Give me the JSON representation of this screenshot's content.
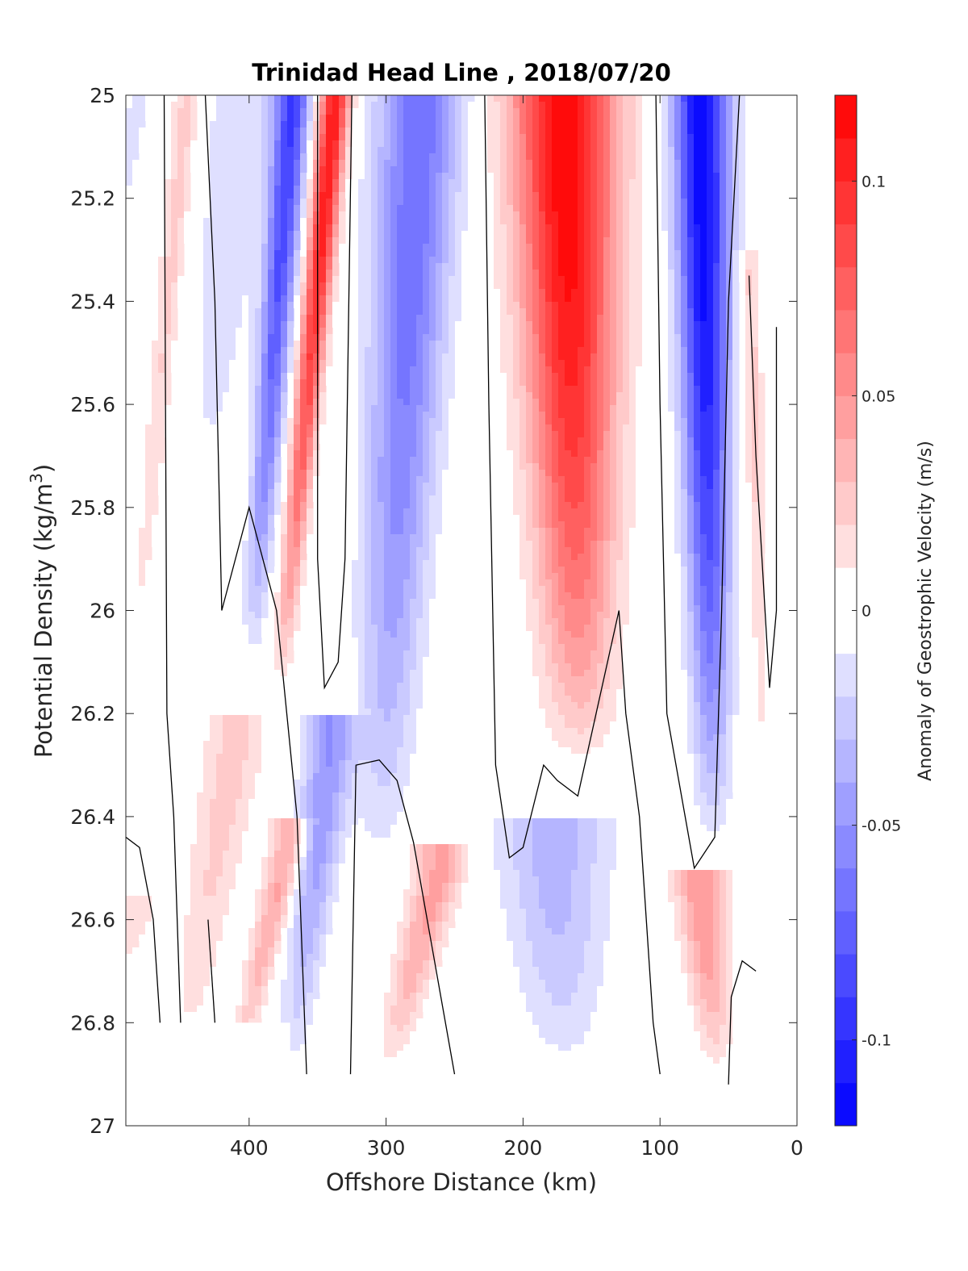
{
  "chart_data": {
    "type": "heatmap",
    "title": "Trinidad Head Line , 2018/07/20",
    "xlabel": "Offshore Distance (km)",
    "ylabel_main": "Potential Density (kg/m",
    "ylabel_sup": "3",
    "ylabel_end": ")",
    "colorbar_label": "Anomaly of Geostrophic Velocity (m/s)",
    "xlim": [
      490,
      0
    ],
    "ylim": [
      25,
      27
    ],
    "x_reversed": true,
    "y_reversed": true,
    "x_ticks": [
      {
        "value": 400,
        "label": "400"
      },
      {
        "value": 300,
        "label": "300"
      },
      {
        "value": 200,
        "label": "200"
      },
      {
        "value": 100,
        "label": "100"
      },
      {
        "value": 0,
        "label": "0"
      }
    ],
    "y_ticks": [
      {
        "value": 25,
        "label": "25"
      },
      {
        "value": 25.2,
        "label": "25.2"
      },
      {
        "value": 25.4,
        "label": "25.4"
      },
      {
        "value": 25.6,
        "label": "25.6"
      },
      {
        "value": 25.8,
        "label": "25.8"
      },
      {
        "value": 26,
        "label": "26"
      },
      {
        "value": 26.2,
        "label": "26.2"
      },
      {
        "value": 26.4,
        "label": "26.4"
      },
      {
        "value": 26.6,
        "label": "26.6"
      },
      {
        "value": 26.8,
        "label": "26.8"
      },
      {
        "value": 27,
        "label": "27"
      }
    ],
    "colorbar": {
      "range": [
        -0.12,
        0.12
      ],
      "levels": 24,
      "color_min": "#0000ff",
      "color_zero": "#ffffff",
      "color_max": "#ff0000",
      "ticks": [
        {
          "value": 0.1,
          "label": "0.1"
        },
        {
          "value": 0.05,
          "label": "0.05"
        },
        {
          "value": 0,
          "label": "0"
        },
        {
          "value": -0.05,
          "label": "-0.05"
        },
        {
          "value": -0.1,
          "label": "-0.1"
        }
      ]
    },
    "velocity_cores": [
      {
        "x": 480,
        "y_top": 25.0,
        "y_bottom": 25.45,
        "peak": -0.015,
        "width": 10
      },
      {
        "x": 445,
        "y_top": 25.0,
        "y_bottom": 26.15,
        "peak": 0.025,
        "width": 10
      },
      {
        "x": 405,
        "y_top": 25.0,
        "y_bottom": 25.85,
        "peak": -0.02,
        "width": 25
      },
      {
        "x": 368,
        "y_top": 25.0,
        "y_bottom": 26.1,
        "peak": -0.09,
        "width": 13
      },
      {
        "x": 337,
        "y_top": 25.0,
        "y_bottom": 26.15,
        "peak": 0.11,
        "width": 11
      },
      {
        "x": 275,
        "y_top": 25.0,
        "y_bottom": 26.5,
        "peak": -0.07,
        "width": 30
      },
      {
        "x": 170,
        "y_top": 25.0,
        "y_bottom": 26.3,
        "peak": 0.12,
        "width": 38
      },
      {
        "x": 70,
        "y_top": 25.0,
        "y_bottom": 26.45,
        "peak": -0.12,
        "width": 20
      },
      {
        "x": 35,
        "y_top": 25.35,
        "y_bottom": 26.4,
        "peak": 0.025,
        "width": 8
      },
      {
        "x": 340,
        "y_top": 26.25,
        "y_bottom": 26.9,
        "peak": -0.05,
        "width": 18
      },
      {
        "x": 178,
        "y_top": 26.45,
        "y_bottom": 26.9,
        "peak": -0.035,
        "width": 40
      },
      {
        "x": 70,
        "y_top": 26.55,
        "y_bottom": 26.9,
        "peak": 0.05,
        "width": 18
      },
      {
        "x": 260,
        "y_top": 26.5,
        "y_bottom": 26.9,
        "peak": 0.045,
        "width": 18
      },
      {
        "x": 370,
        "y_top": 26.45,
        "y_bottom": 26.9,
        "peak": 0.045,
        "width": 13
      },
      {
        "x": 410,
        "y_top": 26.25,
        "y_bottom": 26.9,
        "peak": 0.025,
        "width": 22
      },
      {
        "x": 480,
        "y_top": 26.6,
        "y_bottom": 26.8,
        "peak": 0.02,
        "width": 10
      }
    ],
    "zero_contours": [
      [
        [
          462,
          25.0
        ],
        [
          460,
          26.2
        ],
        [
          455,
          26.4
        ],
        [
          450,
          26.8
        ]
      ],
      [
        [
          432,
          25.0
        ],
        [
          425,
          25.4
        ],
        [
          420,
          26.0
        ],
        [
          400,
          25.8
        ],
        [
          380,
          26.0
        ],
        [
          365,
          26.4
        ],
        [
          358,
          26.9
        ]
      ],
      [
        [
          350,
          25.0
        ],
        [
          350,
          25.9
        ],
        [
          345,
          26.15
        ],
        [
          335,
          26.1
        ],
        [
          330,
          25.9
        ],
        [
          325,
          25.0
        ]
      ],
      [
        [
          490,
          26.44
        ],
        [
          480,
          26.46
        ],
        [
          470,
          26.6
        ],
        [
          465,
          26.8
        ]
      ],
      [
        [
          430,
          26.6
        ],
        [
          425,
          26.8
        ]
      ],
      [
        [
          326,
          26.9
        ],
        [
          322,
          26.3
        ],
        [
          305,
          26.29
        ],
        [
          292,
          26.33
        ],
        [
          280,
          26.45
        ],
        [
          250,
          26.9
        ]
      ],
      [
        [
          228,
          25.0
        ],
        [
          225,
          25.6
        ],
        [
          220,
          26.3
        ],
        [
          210,
          26.48
        ],
        [
          200,
          26.46
        ],
        [
          185,
          26.3
        ],
        [
          175,
          26.33
        ],
        [
          160,
          26.36
        ],
        [
          130,
          26.0
        ],
        [
          125,
          26.2
        ],
        [
          115,
          26.4
        ],
        [
          105,
          26.8
        ],
        [
          100,
          26.9
        ]
      ],
      [
        [
          103,
          25.0
        ],
        [
          100,
          25.6
        ],
        [
          95,
          26.2
        ],
        [
          75,
          26.5
        ],
        [
          60,
          26.44
        ],
        [
          55,
          26.0
        ],
        [
          50,
          25.4
        ],
        [
          42,
          25.0
        ]
      ],
      [
        [
          35,
          25.35
        ],
        [
          30,
          25.7
        ],
        [
          20,
          26.15
        ],
        [
          15,
          26.0
        ],
        [
          15,
          25.45
        ]
      ],
      [
        [
          50,
          26.92
        ],
        [
          48,
          26.75
        ],
        [
          40,
          26.68
        ],
        [
          30,
          26.7
        ]
      ]
    ],
    "nodata_regions": [
      {
        "x_from": 490,
        "x_to": 370,
        "y_from": 26.8,
        "y_to": 27.0
      },
      {
        "x_from": 490,
        "x_to": 0,
        "y_from": 26.9,
        "y_to": 27.0
      },
      {
        "x_from": 22,
        "x_to": 0,
        "y_from": 25.0,
        "y_to": 27.0
      }
    ]
  }
}
